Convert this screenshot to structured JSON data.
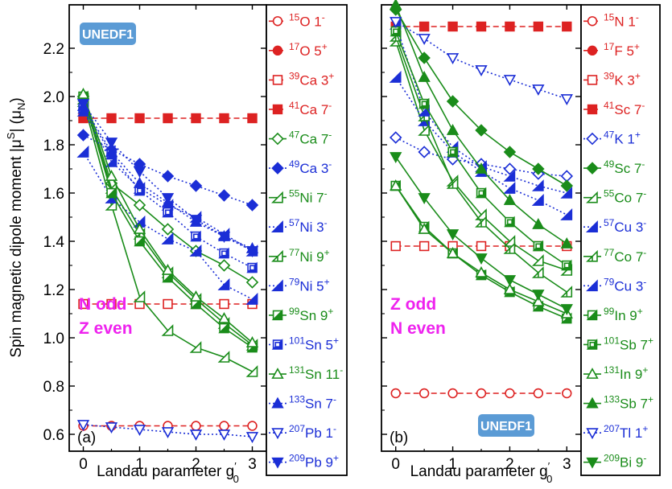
{
  "colors": {
    "red": "#dd2222",
    "blue": "#1b2ed6",
    "green": "#1a8c1a",
    "badge": "#5b9bd5",
    "magenta": "#ee22ee"
  },
  "ylabel": "Spin magnetic dipole moment |μS| (μN)",
  "xlabel": "Landau parameter g′₀",
  "chart_data": [
    {
      "type": "line",
      "panel_label": "(a)",
      "badge": "UNEDF1",
      "annotation": [
        "N odd",
        "Z even"
      ],
      "xlabel": "Landau parameter g′₀",
      "ylabel": "Spin magnetic dipole moment |μS| (μN)",
      "xlim": [
        -0.25,
        3.25
      ],
      "ylim": [
        0.53,
        2.38
      ],
      "xticks": [
        0,
        1,
        2,
        3
      ],
      "yticks": [
        0.6,
        0.8,
        1.0,
        1.2,
        1.4,
        1.6,
        1.8,
        2.0,
        2.2
      ],
      "x": [
        0,
        0.5,
        1,
        1.5,
        2,
        2.5,
        3
      ],
      "series": [
        {
          "name": "15O 1-",
          "mass": "15",
          "el": "O",
          "state": "1",
          "parity": "-",
          "color": "red",
          "marker": "circle",
          "filled": false,
          "dash": "dashed",
          "values": [
            0.635,
            0.635,
            0.635,
            0.635,
            0.635,
            0.635,
            0.635
          ]
        },
        {
          "name": "17O 5+",
          "mass": "17",
          "el": "O",
          "state": "5",
          "parity": "+",
          "color": "red",
          "marker": "circle",
          "filled": true,
          "dash": "dashed",
          "values": null
        },
        {
          "name": "39Ca 3+",
          "mass": "39",
          "el": "Ca",
          "state": "3",
          "parity": "+",
          "color": "red",
          "marker": "square",
          "filled": false,
          "dash": "dashed",
          "values": [
            1.14,
            1.14,
            1.14,
            1.14,
            1.14,
            1.14,
            1.14
          ]
        },
        {
          "name": "41Ca 7-",
          "mass": "41",
          "el": "Ca",
          "state": "7",
          "parity": "-",
          "color": "red",
          "marker": "square",
          "filled": true,
          "dash": "dashed",
          "values": [
            1.91,
            1.91,
            1.91,
            1.91,
            1.91,
            1.91,
            1.91
          ]
        },
        {
          "name": "47Ca 7-",
          "mass": "47",
          "el": "Ca",
          "state": "7",
          "parity": "-",
          "color": "green",
          "marker": "diamond",
          "filled": false,
          "dash": "solid",
          "values": [
            2.0,
            1.64,
            1.55,
            1.45,
            1.36,
            1.3,
            1.23
          ]
        },
        {
          "name": "49Ca 3-",
          "mass": "49",
          "el": "Ca",
          "state": "3",
          "parity": "-",
          "color": "blue",
          "marker": "diamond",
          "filled": true,
          "dash": "dotted",
          "values": [
            1.84,
            1.78,
            1.72,
            1.67,
            1.63,
            1.59,
            1.55
          ]
        },
        {
          "name": "55Ni 7-",
          "mass": "55",
          "el": "Ni",
          "state": "7",
          "parity": "-",
          "color": "green",
          "marker": "tri-right",
          "filled": false,
          "dash": "solid",
          "values": [
            1.98,
            1.55,
            1.17,
            1.03,
            0.96,
            0.92,
            0.86
          ]
        },
        {
          "name": "57Ni 3-",
          "mass": "57",
          "el": "Ni",
          "state": "3",
          "parity": "-",
          "color": "blue",
          "marker": "tri-right",
          "filled": true,
          "dash": "dotted",
          "values": [
            1.77,
            1.58,
            1.48,
            1.41,
            1.36,
            1.22,
            1.16
          ]
        },
        {
          "name": "77Ni 9+",
          "mass": "77",
          "el": "Ni",
          "state": "9",
          "parity": "+",
          "color": "green",
          "marker": "tri-half",
          "filled": false,
          "dash": "solid",
          "values": [
            1.99,
            1.62,
            1.43,
            1.27,
            1.16,
            1.06,
            0.97
          ]
        },
        {
          "name": "79Ni 5+",
          "mass": "79",
          "el": "Ni",
          "state": "5",
          "parity": "+",
          "color": "blue",
          "marker": "tri-half",
          "filled": true,
          "dash": "dotted",
          "values": [
            1.94,
            1.73,
            1.62,
            1.55,
            1.5,
            1.43,
            1.36
          ]
        },
        {
          "name": "99Sn 9+",
          "mass": "99",
          "el": "Sn",
          "state": "9",
          "parity": "+",
          "color": "green",
          "marker": "square-half",
          "filled": true,
          "dash": "solid",
          "values": [
            2.0,
            1.6,
            1.4,
            1.25,
            1.14,
            1.04,
            0.96
          ]
        },
        {
          "name": "101Sn 5+",
          "mass": "101",
          "el": "Sn",
          "state": "5",
          "parity": "+",
          "color": "blue",
          "marker": "square-half",
          "filled": false,
          "dash": "dotted",
          "values": [
            1.95,
            1.76,
            1.61,
            1.52,
            1.42,
            1.35,
            1.29
          ]
        },
        {
          "name": "131Sn 11-",
          "mass": "131",
          "el": "Sn",
          "state": "11",
          "parity": "-",
          "color": "green",
          "marker": "triangle",
          "filled": false,
          "dash": "solid",
          "values": [
            2.01,
            1.67,
            1.45,
            1.28,
            1.17,
            1.08,
            0.98
          ]
        },
        {
          "name": "133Sn 7-",
          "mass": "133",
          "el": "Sn",
          "state": "7",
          "parity": "-",
          "color": "blue",
          "marker": "triangle",
          "filled": true,
          "dash": "dotted",
          "values": [
            1.96,
            1.77,
            1.64,
            1.56,
            1.48,
            1.42,
            1.37
          ]
        },
        {
          "name": "207Pb 1-",
          "mass": "207",
          "el": "Pb",
          "state": "1",
          "parity": "-",
          "color": "blue",
          "marker": "tri-down",
          "filled": false,
          "dash": "dotted",
          "values": [
            0.64,
            0.63,
            0.62,
            0.61,
            0.6,
            0.6,
            0.59
          ]
        },
        {
          "name": "209Pb 9+",
          "mass": "209",
          "el": "Pb",
          "state": "9",
          "parity": "+",
          "color": "blue",
          "marker": "tri-down",
          "filled": true,
          "dash": "dotted",
          "values": [
            1.97,
            1.81,
            1.69,
            1.58,
            1.49,
            1.42,
            1.36
          ]
        }
      ]
    },
    {
      "type": "line",
      "panel_label": "(b)",
      "badge": "UNEDF1",
      "annotation": [
        "Z odd",
        "N even"
      ],
      "xlabel": "Landau parameter g′₀",
      "ylabel": "Spin magnetic dipole moment |μS| (μN)",
      "xlim": [
        -0.25,
        3.25
      ],
      "ylim": [
        0.53,
        2.38
      ],
      "xticks": [
        0,
        1,
        2,
        3
      ],
      "yticks": [
        0.6,
        0.8,
        1.0,
        1.2,
        1.4,
        1.6,
        1.8,
        2.0,
        2.2
      ],
      "x": [
        0,
        0.5,
        1,
        1.5,
        2,
        2.5,
        3
      ],
      "series": [
        {
          "name": "15N 1-",
          "mass": "15",
          "el": "N",
          "state": "1",
          "parity": "-",
          "color": "red",
          "marker": "circle",
          "filled": false,
          "dash": "dashed",
          "values": [
            0.77,
            0.77,
            0.77,
            0.77,
            0.77,
            0.77,
            0.77
          ]
        },
        {
          "name": "17F 5+",
          "mass": "17",
          "el": "F",
          "state": "5",
          "parity": "+",
          "color": "red",
          "marker": "circle",
          "filled": true,
          "dash": "dashed",
          "values": null
        },
        {
          "name": "39K 3+",
          "mass": "39",
          "el": "K",
          "state": "3",
          "parity": "+",
          "color": "red",
          "marker": "square",
          "filled": false,
          "dash": "dashed",
          "values": [
            1.38,
            1.38,
            1.38,
            1.38,
            1.38,
            1.38,
            1.38
          ]
        },
        {
          "name": "41Sc 7-",
          "mass": "41",
          "el": "Sc",
          "state": "7",
          "parity": "-",
          "color": "red",
          "marker": "square",
          "filled": true,
          "dash": "dashed",
          "values": [
            2.29,
            2.29,
            2.29,
            2.29,
            2.29,
            2.29,
            2.29
          ]
        },
        {
          "name": "47K 1+",
          "mass": "47",
          "el": "K",
          "state": "1",
          "parity": "+",
          "color": "blue",
          "marker": "diamond",
          "filled": false,
          "dash": "dotted",
          "values": [
            1.83,
            1.77,
            1.74,
            1.72,
            1.7,
            1.68,
            1.67
          ]
        },
        {
          "name": "49Sc 7-",
          "mass": "49",
          "el": "Sc",
          "state": "7",
          "parity": "-",
          "color": "green",
          "marker": "diamond",
          "filled": true,
          "dash": "solid",
          "values": [
            2.36,
            2.16,
            1.98,
            1.86,
            1.77,
            1.7,
            1.63
          ]
        },
        {
          "name": "55Co 7-",
          "mass": "55",
          "el": "Co",
          "state": "7",
          "parity": "-",
          "color": "green",
          "marker": "tri-right",
          "filled": false,
          "dash": "solid",
          "values": [
            2.23,
            1.86,
            1.65,
            1.51,
            1.4,
            1.32,
            1.28
          ]
        },
        {
          "name": "57Cu 3-",
          "mass": "57",
          "el": "Cu",
          "state": "3",
          "parity": "-",
          "color": "blue",
          "marker": "tri-right",
          "filled": true,
          "dash": "dotted",
          "values": [
            2.08,
            1.9,
            1.77,
            1.69,
            1.62,
            1.57,
            1.51
          ]
        },
        {
          "name": "77Co 7-",
          "mass": "77",
          "el": "Co",
          "state": "7",
          "parity": "-",
          "color": "green",
          "marker": "tri-half",
          "filled": false,
          "dash": "solid",
          "values": [
            2.25,
            1.92,
            1.64,
            1.48,
            1.37,
            1.27,
            1.19
          ]
        },
        {
          "name": "79Cu 3-",
          "mass": "79",
          "el": "Cu",
          "state": "3",
          "parity": "-",
          "color": "blue",
          "marker": "tri-half",
          "filled": true,
          "dash": "dotted",
          "values": [
            2.3,
            1.94,
            1.79,
            1.71,
            1.67,
            1.63,
            1.6
          ]
        },
        {
          "name": "99In 9+",
          "mass": "99",
          "el": "In",
          "state": "9",
          "parity": "+",
          "color": "green",
          "marker": "square-half",
          "filled": true,
          "dash": "solid",
          "values": [
            1.63,
            1.46,
            1.35,
            1.26,
            1.19,
            1.13,
            1.08
          ]
        },
        {
          "name": "101Sb 7+",
          "mass": "101",
          "el": "Sb",
          "state": "7",
          "parity": "+",
          "color": "green",
          "marker": "square-half",
          "filled": false,
          "dash": "solid",
          "values": [
            2.27,
            1.97,
            1.77,
            1.6,
            1.48,
            1.38,
            1.3
          ]
        },
        {
          "name": "131In 9+",
          "mass": "131",
          "el": "In",
          "state": "9",
          "parity": "+",
          "color": "green",
          "marker": "triangle",
          "filled": false,
          "dash": "solid",
          "values": [
            1.63,
            1.45,
            1.35,
            1.27,
            1.2,
            1.15,
            1.1
          ]
        },
        {
          "name": "133Sb 7+",
          "mass": "133",
          "el": "Sb",
          "state": "7",
          "parity": "+",
          "color": "green",
          "marker": "triangle",
          "filled": true,
          "dash": "solid",
          "values": [
            2.38,
            2.08,
            1.86,
            1.7,
            1.57,
            1.47,
            1.39
          ]
        },
        {
          "name": "207Tl 1+",
          "mass": "207",
          "el": "Tl",
          "state": "1",
          "parity": "+",
          "color": "blue",
          "marker": "tri-down",
          "filled": false,
          "dash": "dotted",
          "values": [
            2.31,
            2.24,
            2.16,
            2.11,
            2.07,
            2.03,
            1.99
          ]
        },
        {
          "name": "209Bi 9-",
          "mass": "209",
          "el": "Bi",
          "state": "9",
          "parity": "-",
          "color": "green",
          "marker": "tri-down",
          "filled": true,
          "dash": "solid",
          "values": [
            1.75,
            1.58,
            1.43,
            1.33,
            1.24,
            1.18,
            1.12
          ]
        }
      ]
    }
  ]
}
